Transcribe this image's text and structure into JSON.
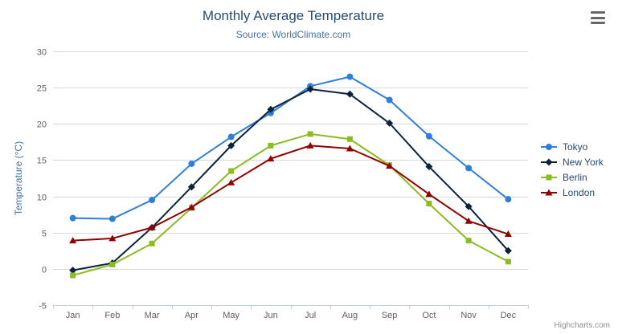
{
  "chart": {
    "credits": "Highcharts.com"
  },
  "chart_data": {
    "type": "line",
    "title": "Monthly Average Temperature",
    "subtitle": "Source: WorldClimate.com",
    "xlabel": "",
    "ylabel": "Temperature (°C)",
    "ylim": [
      -5,
      30
    ],
    "ytick_interval": 5,
    "grid": true,
    "legend_position": "right",
    "categories": [
      "Jan",
      "Feb",
      "Mar",
      "Apr",
      "May",
      "Jun",
      "Jul",
      "Aug",
      "Sep",
      "Oct",
      "Nov",
      "Dec"
    ],
    "series": [
      {
        "name": "Tokyo",
        "color": "#2f7ed8",
        "marker": "circle",
        "values": [
          7.0,
          6.9,
          9.5,
          14.5,
          18.2,
          21.5,
          25.2,
          26.5,
          23.3,
          18.3,
          13.9,
          9.6
        ]
      },
      {
        "name": "New York",
        "color": "#0d233a",
        "marker": "diamond",
        "values": [
          -0.2,
          0.8,
          5.7,
          11.3,
          17.0,
          22.0,
          24.8,
          24.1,
          20.1,
          14.1,
          8.6,
          2.5
        ]
      },
      {
        "name": "Berlin",
        "color": "#8bbc21",
        "marker": "square",
        "values": [
          -0.9,
          0.6,
          3.5,
          8.4,
          13.5,
          17.0,
          18.6,
          17.9,
          14.3,
          9.0,
          3.9,
          1.0
        ]
      },
      {
        "name": "London",
        "color": "#910000",
        "marker": "triangle",
        "values": [
          3.9,
          4.2,
          5.7,
          8.5,
          11.9,
          15.2,
          17.0,
          16.6,
          14.2,
          10.3,
          6.6,
          4.8
        ]
      }
    ]
  }
}
